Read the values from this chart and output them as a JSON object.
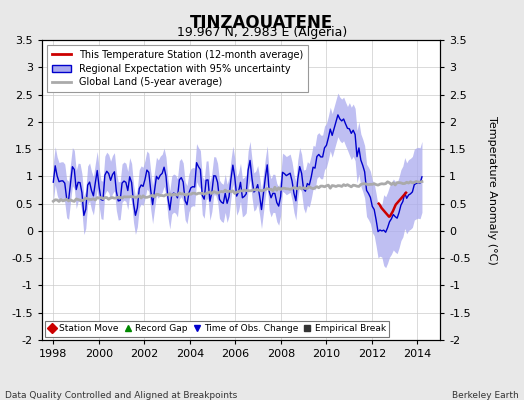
{
  "title": "TINZAOUATENE",
  "subtitle": "19.967 N, 2.983 E (Algeria)",
  "ylabel": "Temperature Anomaly (°C)",
  "xlabel_bottom": "Data Quality Controlled and Aligned at Breakpoints",
  "xlabel_right": "Berkeley Earth",
  "ylim": [
    -2.0,
    3.5
  ],
  "xlim": [
    1997.5,
    2015.0
  ],
  "xticks": [
    1998,
    2000,
    2002,
    2004,
    2006,
    2008,
    2010,
    2012,
    2014
  ],
  "yticks": [
    -2,
    -1.5,
    -1,
    -0.5,
    0,
    0.5,
    1,
    1.5,
    2,
    2.5,
    3,
    3.5
  ],
  "bg_color": "#e8e8e8",
  "plot_bg_color": "#ffffff",
  "blue_line_color": "#0000cc",
  "blue_fill_color": "#aaaaee",
  "red_line_color": "#cc0000",
  "gray_line_color": "#aaaaaa",
  "legend1_labels": [
    "This Temperature Station (12-month average)",
    "Regional Expectation with 95% uncertainty",
    "Global Land (5-year average)"
  ],
  "legend2_labels": [
    "Station Move",
    "Record Gap",
    "Time of Obs. Change",
    "Empirical Break"
  ],
  "legend2_colors": [
    "#cc0000",
    "#008800",
    "#0000cc",
    "#333333"
  ],
  "legend2_markers": [
    "D",
    "^",
    "v",
    "s"
  ]
}
